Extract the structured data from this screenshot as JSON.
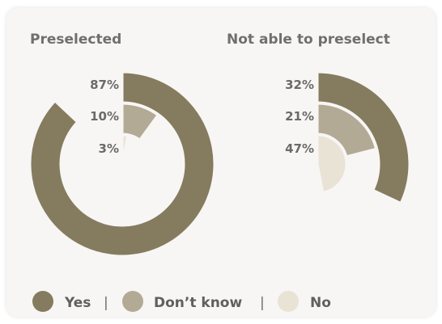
{
  "chart_data": [
    {
      "type": "pie",
      "title": "Preselected",
      "categories": [
        "Yes",
        "Don’t know",
        "No"
      ],
      "values": [
        87,
        10,
        3
      ],
      "value_labels": [
        "87%",
        "10%",
        "3%"
      ]
    },
    {
      "type": "pie",
      "title": "Not able to preselect",
      "categories": [
        "Yes",
        "Don’t know",
        "No"
      ],
      "values": [
        32,
        21,
        47
      ],
      "value_labels": [
        "32%",
        "21%",
        "47%"
      ]
    }
  ],
  "legend": {
    "items": [
      {
        "label": "Yes",
        "color": "#857b5e"
      },
      {
        "label": "Don’t know",
        "color": "#b2aa94"
      },
      {
        "label": "No",
        "color": "#e9e3d6"
      }
    ],
    "separator": "|"
  },
  "colors": {
    "yes": "#857b5e",
    "dont_know": "#b2aa94",
    "no": "#e9e3d6",
    "background": "#f7f6f4"
  }
}
